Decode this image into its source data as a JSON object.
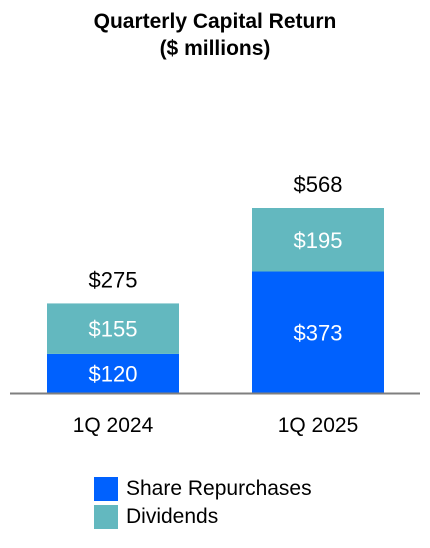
{
  "title": "Quarterly Capital Return",
  "subtitle": "($ millions)",
  "chart_data": {
    "type": "bar",
    "stacked": true,
    "categories": [
      "1Q 2024",
      "1Q 2025"
    ],
    "series": [
      {
        "name": "Share Repurchases",
        "values": [
          120,
          373
        ],
        "labels": [
          "$120",
          "$373"
        ],
        "color": "#0061FE"
      },
      {
        "name": "Dividends",
        "values": [
          155,
          195
        ],
        "labels": [
          "$155",
          "$195"
        ],
        "color": "#63B8BF"
      }
    ],
    "totals": [
      275,
      568
    ],
    "total_labels": [
      "$275",
      "$568"
    ],
    "ylim": [
      0,
      568
    ],
    "legend_position": "bottom",
    "grid": false,
    "xlabel": "",
    "ylabel": ""
  }
}
